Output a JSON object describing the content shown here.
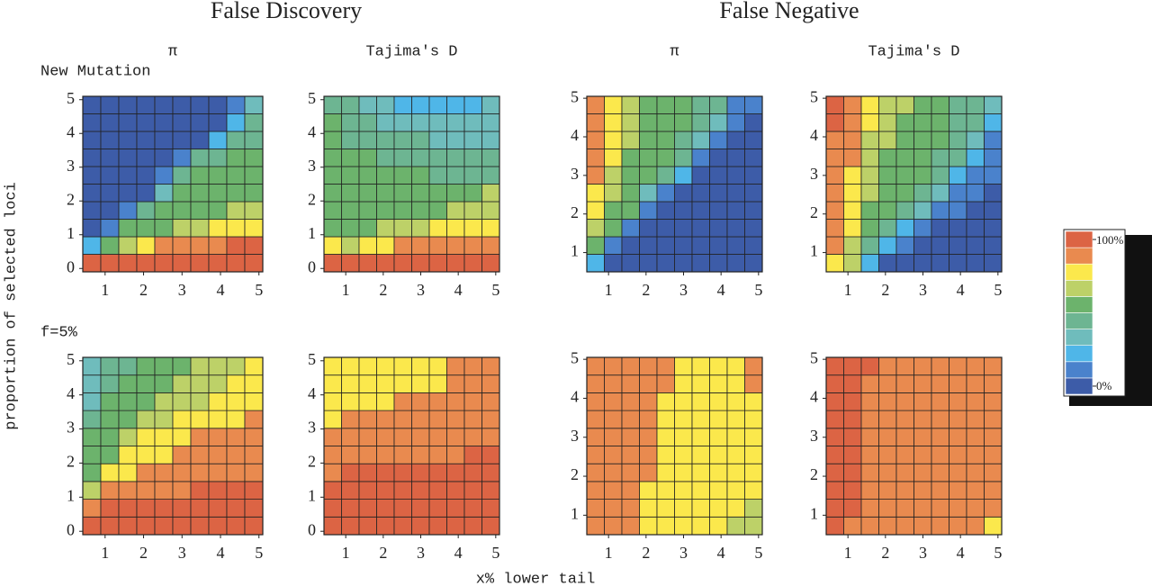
{
  "figure": {
    "group_titles": [
      "False Discovery",
      "False Negative"
    ],
    "xlabel": "x% lower tail",
    "ylabel": "proportion of selected loci",
    "colors": [
      "#3d5ca8",
      "#4a82cc",
      "#4fb6e8",
      "#6fbcbc",
      "#6db592",
      "#6cb36c",
      "#bdd168",
      "#fbe84c",
      "#e98a4f",
      "#dc6444"
    ],
    "legend": {
      "max_label": "100%",
      "min_label": "0%",
      "max": 100,
      "min": 0
    }
  },
  "chart_data": [
    {
      "type": "heatmap",
      "col_title": "π",
      "row_label": "New Mutation",
      "xlim": [
        0.42,
        5.1
      ],
      "ylim": [
        -0.1,
        5.1
      ],
      "xticks": [
        1,
        2,
        3,
        4,
        5
      ],
      "yticks": [
        0,
        1,
        2,
        3,
        4,
        5
      ],
      "values": [
        [
          100,
          100,
          100,
          100,
          100,
          100,
          100,
          100,
          100,
          100
        ],
        [
          22,
          56,
          67,
          78,
          89,
          89,
          89,
          89,
          100,
          100
        ],
        [
          0,
          11,
          56,
          56,
          56,
          67,
          67,
          78,
          78,
          78
        ],
        [
          0,
          0,
          11,
          44,
          56,
          56,
          56,
          56,
          67,
          67
        ],
        [
          0,
          0,
          0,
          0,
          33,
          56,
          56,
          56,
          56,
          56
        ],
        [
          0,
          0,
          0,
          0,
          11,
          44,
          56,
          56,
          56,
          56
        ],
        [
          0,
          0,
          0,
          0,
          0,
          11,
          44,
          44,
          56,
          56
        ],
        [
          0,
          0,
          0,
          0,
          0,
          0,
          0,
          22,
          44,
          44
        ],
        [
          0,
          0,
          0,
          0,
          0,
          0,
          0,
          0,
          22,
          44
        ],
        [
          0,
          0,
          0,
          0,
          0,
          0,
          0,
          0,
          11,
          33
        ]
      ]
    },
    {
      "type": "heatmap",
      "col_title": "Tajima's D",
      "xlim": [
        0.42,
        5.1
      ],
      "ylim": [
        -0.1,
        5.1
      ],
      "xticks": [
        1,
        2,
        3,
        4,
        5
      ],
      "yticks": [
        0,
        1,
        2,
        3,
        4,
        5
      ],
      "values": [
        [
          100,
          100,
          100,
          100,
          100,
          100,
          100,
          100,
          100,
          100
        ],
        [
          78,
          67,
          78,
          78,
          89,
          89,
          89,
          89,
          89,
          89
        ],
        [
          56,
          56,
          56,
          67,
          67,
          67,
          78,
          78,
          78,
          78
        ],
        [
          56,
          56,
          56,
          56,
          56,
          56,
          56,
          67,
          67,
          67
        ],
        [
          56,
          56,
          56,
          56,
          56,
          56,
          56,
          56,
          56,
          67
        ],
        [
          56,
          56,
          56,
          56,
          56,
          56,
          44,
          44,
          44,
          44
        ],
        [
          56,
          56,
          56,
          44,
          44,
          44,
          44,
          44,
          44,
          44
        ],
        [
          56,
          44,
          44,
          44,
          44,
          44,
          33,
          33,
          33,
          33
        ],
        [
          56,
          44,
          44,
          33,
          33,
          33,
          33,
          33,
          33,
          33
        ],
        [
          44,
          44,
          33,
          33,
          22,
          22,
          22,
          22,
          22,
          33
        ]
      ]
    },
    {
      "type": "heatmap",
      "col_title": "π",
      "xlim": [
        0.42,
        5.1
      ],
      "ylim": [
        0.5,
        5.05
      ],
      "xticks": [
        1,
        2,
        3,
        4,
        5
      ],
      "yticks": [
        1,
        2,
        3,
        4,
        5
      ],
      "values": [
        [
          22,
          0,
          0,
          0,
          0,
          0,
          0,
          0,
          0,
          0
        ],
        [
          56,
          11,
          0,
          0,
          0,
          0,
          0,
          0,
          0,
          0
        ],
        [
          67,
          56,
          11,
          0,
          0,
          0,
          0,
          0,
          0,
          0
        ],
        [
          78,
          56,
          56,
          11,
          0,
          0,
          0,
          0,
          0,
          0
        ],
        [
          78,
          67,
          56,
          33,
          11,
          0,
          0,
          0,
          0,
          0
        ],
        [
          89,
          67,
          56,
          56,
          44,
          22,
          0,
          0,
          0,
          0
        ],
        [
          89,
          78,
          56,
          56,
          56,
          44,
          11,
          0,
          0,
          0
        ],
        [
          89,
          78,
          67,
          56,
          56,
          44,
          33,
          11,
          0,
          0
        ],
        [
          89,
          78,
          67,
          56,
          56,
          56,
          44,
          33,
          11,
          0
        ],
        [
          89,
          78,
          67,
          56,
          56,
          56,
          44,
          44,
          11,
          11
        ]
      ]
    },
    {
      "type": "heatmap",
      "col_title": "Tajima's D",
      "xlim": [
        0.42,
        5.1
      ],
      "ylim": [
        0.5,
        5.05
      ],
      "xticks": [
        1,
        2,
        3,
        4,
        5
      ],
      "yticks": [
        1,
        2,
        3,
        4,
        5
      ],
      "values": [
        [
          78,
          67,
          22,
          0,
          0,
          0,
          0,
          0,
          0,
          0
        ],
        [
          89,
          67,
          44,
          22,
          11,
          0,
          0,
          0,
          0,
          0
        ],
        [
          89,
          78,
          56,
          44,
          22,
          11,
          0,
          0,
          0,
          0
        ],
        [
          89,
          78,
          56,
          56,
          44,
          33,
          11,
          11,
          0,
          0
        ],
        [
          89,
          78,
          67,
          56,
          56,
          44,
          33,
          11,
          11,
          0
        ],
        [
          89,
          78,
          67,
          56,
          56,
          56,
          44,
          22,
          11,
          11
        ],
        [
          89,
          89,
          67,
          56,
          56,
          56,
          44,
          44,
          22,
          11
        ],
        [
          89,
          89,
          67,
          67,
          56,
          56,
          56,
          44,
          33,
          11
        ],
        [
          100,
          89,
          78,
          67,
          56,
          56,
          56,
          44,
          44,
          22
        ],
        [
          100,
          89,
          78,
          67,
          67,
          56,
          56,
          44,
          44,
          33
        ]
      ]
    },
    {
      "type": "heatmap",
      "row_label": "f=5%",
      "xlim": [
        0.42,
        5.1
      ],
      "ylim": [
        -0.1,
        5.1
      ],
      "xticks": [
        1,
        2,
        3,
        4,
        5
      ],
      "yticks": [
        0,
        1,
        2,
        3,
        4,
        5
      ],
      "values": [
        [
          100,
          100,
          100,
          100,
          100,
          100,
          100,
          100,
          100,
          100
        ],
        [
          89,
          100,
          100,
          100,
          100,
          100,
          100,
          100,
          100,
          100
        ],
        [
          67,
          89,
          89,
          89,
          89,
          89,
          100,
          100,
          100,
          100
        ],
        [
          56,
          78,
          78,
          89,
          89,
          89,
          89,
          89,
          89,
          89
        ],
        [
          56,
          56,
          78,
          78,
          78,
          89,
          89,
          89,
          89,
          89
        ],
        [
          56,
          56,
          67,
          78,
          78,
          78,
          89,
          89,
          89,
          89
        ],
        [
          44,
          56,
          56,
          67,
          67,
          78,
          78,
          78,
          78,
          89
        ],
        [
          33,
          56,
          56,
          56,
          67,
          67,
          67,
          78,
          78,
          78
        ],
        [
          33,
          44,
          56,
          56,
          56,
          67,
          67,
          67,
          78,
          78
        ],
        [
          33,
          44,
          44,
          56,
          56,
          56,
          67,
          67,
          67,
          78
        ]
      ]
    },
    {
      "type": "heatmap",
      "xlim": [
        0.42,
        5.1
      ],
      "ylim": [
        -0.1,
        5.1
      ],
      "xticks": [
        1,
        2,
        3,
        4,
        5
      ],
      "yticks": [
        0,
        1,
        2,
        3,
        4,
        5
      ],
      "values": [
        [
          100,
          100,
          100,
          100,
          100,
          100,
          100,
          100,
          100,
          100
        ],
        [
          100,
          100,
          100,
          100,
          100,
          100,
          100,
          100,
          100,
          100
        ],
        [
          100,
          100,
          100,
          100,
          100,
          100,
          100,
          100,
          100,
          100
        ],
        [
          89,
          100,
          100,
          100,
          100,
          100,
          100,
          100,
          100,
          100
        ],
        [
          89,
          89,
          89,
          89,
          89,
          89,
          89,
          89,
          100,
          100
        ],
        [
          89,
          89,
          89,
          89,
          89,
          89,
          89,
          89,
          89,
          89
        ],
        [
          78,
          89,
          89,
          89,
          89,
          89,
          89,
          89,
          89,
          89
        ],
        [
          78,
          78,
          78,
          78,
          89,
          89,
          89,
          89,
          89,
          89
        ],
        [
          78,
          78,
          78,
          78,
          78,
          78,
          78,
          89,
          89,
          89
        ],
        [
          78,
          78,
          78,
          78,
          78,
          78,
          78,
          89,
          89,
          89
        ]
      ]
    },
    {
      "type": "heatmap",
      "xlim": [
        0.42,
        5.1
      ],
      "ylim": [
        0.5,
        5.05
      ],
      "xticks": [
        1,
        2,
        3,
        4,
        5
      ],
      "yticks": [
        1,
        2,
        3,
        4,
        5
      ],
      "values": [
        [
          89,
          89,
          89,
          78,
          78,
          78,
          78,
          78,
          67,
          67
        ],
        [
          89,
          89,
          89,
          78,
          78,
          78,
          78,
          78,
          78,
          67
        ],
        [
          89,
          89,
          89,
          78,
          78,
          78,
          78,
          78,
          78,
          78
        ],
        [
          89,
          89,
          89,
          89,
          78,
          78,
          78,
          78,
          78,
          78
        ],
        [
          89,
          89,
          89,
          89,
          78,
          78,
          78,
          78,
          78,
          78
        ],
        [
          89,
          89,
          89,
          89,
          78,
          78,
          78,
          78,
          78,
          78
        ],
        [
          89,
          89,
          89,
          89,
          78,
          78,
          78,
          78,
          78,
          78
        ],
        [
          89,
          89,
          89,
          89,
          78,
          78,
          78,
          78,
          78,
          78
        ],
        [
          89,
          89,
          89,
          89,
          89,
          78,
          78,
          78,
          78,
          89
        ],
        [
          89,
          89,
          89,
          89,
          89,
          78,
          78,
          78,
          78,
          89
        ]
      ]
    },
    {
      "type": "heatmap",
      "xlim": [
        0.42,
        5.1
      ],
      "ylim": [
        0.5,
        5.05
      ],
      "xticks": [
        1,
        2,
        3,
        4,
        5
      ],
      "yticks": [
        1,
        2,
        3,
        4,
        5
      ],
      "values": [
        [
          100,
          89,
          89,
          89,
          89,
          89,
          89,
          89,
          89,
          78
        ],
        [
          100,
          100,
          89,
          89,
          89,
          89,
          89,
          89,
          89,
          89
        ],
        [
          100,
          100,
          89,
          89,
          89,
          89,
          89,
          89,
          89,
          89
        ],
        [
          100,
          100,
          89,
          89,
          89,
          89,
          89,
          89,
          89,
          89
        ],
        [
          100,
          100,
          89,
          89,
          89,
          89,
          89,
          89,
          89,
          89
        ],
        [
          100,
          100,
          89,
          89,
          89,
          89,
          89,
          89,
          89,
          89
        ],
        [
          100,
          100,
          89,
          89,
          89,
          89,
          89,
          89,
          89,
          89
        ],
        [
          100,
          100,
          89,
          89,
          89,
          89,
          89,
          89,
          89,
          89
        ],
        [
          100,
          100,
          89,
          89,
          89,
          89,
          89,
          89,
          89,
          89
        ],
        [
          100,
          100,
          100,
          89,
          89,
          89,
          89,
          89,
          89,
          89
        ]
      ]
    }
  ]
}
